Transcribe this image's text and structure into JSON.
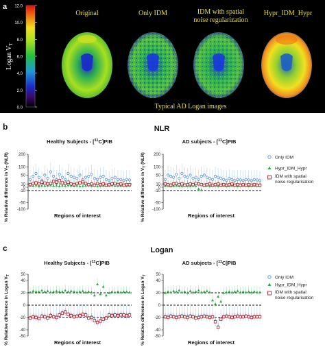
{
  "panel_a": {
    "label": "a",
    "colorbar": {
      "title": "Logan V",
      "title_sub": "T",
      "ticks": [
        "12.0",
        "10.0",
        "8.0",
        "6.0",
        "4.0",
        "2.0",
        "0.0"
      ]
    },
    "image_titles": [
      "Original",
      "Only IDM",
      "IDM with spatial noise regularization",
      "Hypr_IDM_Hypr"
    ],
    "image_title_lines": {
      "c": [
        "Original"
      ],
      "d": [
        "Only IDM"
      ],
      "e": [
        "IDM with spatial",
        "noise regularization"
      ],
      "f": [
        "Hypr_IDM_Hypr"
      ]
    },
    "caption": "Typical AD Logan images"
  },
  "panel_b": {
    "label": "b",
    "title": "NLR",
    "left_title": "Healthy Subjects - [11C]PIB",
    "left_title_parts": [
      "Healthy Subjects - [",
      "11",
      "C]PIB"
    ],
    "right_title": "AD subjects - [11C]PIB",
    "right_title_parts": [
      "AD subjects - [",
      "11",
      "C]PIB"
    ],
    "ylabel": "% Relative difference in VT (NLR)",
    "ylabel_parts": [
      "% Relative difference in V",
      "T",
      " (NLR)"
    ],
    "xlabel": "Regions of interest",
    "yticks": [
      "200",
      "100",
      "50",
      "10",
      "0",
      "-10",
      "-50",
      "-100"
    ]
  },
  "panel_c": {
    "label": "c",
    "title": "Logan",
    "left_title": "Healthy Subjects - [11C]PIB",
    "left_title_parts": [
      "Healthy Subjects - [",
      "11",
      "C]PIB"
    ],
    "right_title": "AD subjects - [11C]PIB",
    "right_title_parts": [
      "AD subjects - [",
      "11",
      "C]PIB"
    ],
    "ylabel": "% Relative difference in Logan VT",
    "ylabel_parts": [
      "% Relative difference in Logan V",
      "T"
    ],
    "xlabel": "Regions of interest",
    "yticks": [
      "50",
      "40",
      "20",
      "0",
      "-20",
      "-40",
      "-50"
    ]
  },
  "legend": {
    "items": [
      "Only IDM",
      "Hypr_IDM_Hypr",
      "IDM with spatial noise regularisation"
    ],
    "item3_lines": [
      "IDM with spatial",
      "noise regularisation"
    ]
  },
  "colors": {
    "only_idm": "#4a90d9",
    "hypr": "#2ea84a",
    "spatial": "#b0202a",
    "panel_a_bg": "#000000",
    "caption": "#e8e010"
  },
  "chart_data": [
    {
      "type": "scatter",
      "title": "Healthy Subjects - [11C]PIB",
      "xlabel": "Regions of interest",
      "ylabel": "% Relative difference in VT (NLR)",
      "ylim": [
        -100,
        200
      ],
      "y_scale": "nonlinear (ticks -100,-50,-10,0,10,50,100,200)",
      "reference_lines": [
        -10,
        10
      ],
      "series": [
        {
          "name": "Only IDM",
          "values": [
            30,
            45,
            60,
            40,
            25,
            50,
            35,
            70,
            45,
            30,
            55,
            40,
            30,
            60,
            45,
            40,
            35,
            50,
            30,
            40,
            45,
            55,
            35,
            30,
            40,
            45,
            30,
            25,
            35,
            40,
            30,
            30,
            25,
            30,
            28
          ]
        },
        {
          "name": "Hypr_IDM_Hypr",
          "values": [
            5,
            4,
            6,
            3,
            5,
            4,
            5,
            6,
            4,
            5,
            3,
            5,
            4,
            6,
            5,
            4,
            5,
            3,
            4,
            5,
            6,
            4,
            5,
            3,
            4,
            5,
            4,
            5,
            6,
            4,
            5,
            4,
            5,
            4,
            5
          ]
        },
        {
          "name": "IDM with spatial noise regularisation",
          "values": [
            8,
            12,
            15,
            10,
            18,
            14,
            10,
            12,
            22,
            18,
            25,
            15,
            12,
            18,
            10,
            8,
            12,
            15,
            20,
            12,
            8,
            10,
            6,
            12,
            8,
            10,
            6,
            8,
            10,
            12,
            8,
            10,
            6,
            8,
            8
          ]
        }
      ]
    },
    {
      "type": "scatter",
      "title": "AD subjects - [11C]PIB",
      "xlabel": "Regions of interest",
      "ylabel": "% Relative difference in VT (NLR)",
      "ylim": [
        -100,
        200
      ],
      "y_scale": "nonlinear (ticks -100,-50,-10,0,10,50,100,200)",
      "reference_lines": [
        -10,
        10
      ],
      "series": [
        {
          "name": "Only IDM",
          "values": [
            30,
            50,
            45,
            40,
            55,
            35,
            60,
            45,
            40,
            50,
            35,
            40,
            30,
            45,
            50,
            40,
            35,
            30,
            45,
            40,
            35,
            30,
            25,
            35,
            30,
            25,
            30,
            28,
            25,
            30,
            28,
            25,
            30,
            28,
            25
          ]
        },
        {
          "name": "Hypr_IDM_Hypr",
          "values": [
            4,
            5,
            3,
            4,
            5,
            4,
            3,
            5,
            4,
            3,
            5,
            4,
            -5,
            -8,
            4,
            5,
            3,
            4,
            5,
            3,
            4,
            5,
            3,
            4,
            5,
            4,
            3,
            4,
            5,
            4,
            3,
            4,
            5,
            4,
            4
          ]
        },
        {
          "name": "IDM with spatial noise regularisation",
          "values": [
            10,
            8,
            6,
            10,
            12,
            8,
            10,
            6,
            8,
            10,
            8,
            12,
            10,
            8,
            6,
            8,
            10,
            6,
            8,
            10,
            6,
            8,
            6,
            8,
            10,
            6,
            8,
            6,
            8,
            6,
            8,
            6,
            8,
            6,
            6
          ]
        }
      ]
    },
    {
      "type": "scatter",
      "title": "Healthy Subjects - [11C]PIB",
      "xlabel": "Regions of interest",
      "ylabel": "% Relative difference in Logan VT",
      "ylim": [
        -50,
        50
      ],
      "y_scale": "linear",
      "reference_lines": [
        -20,
        0,
        20
      ],
      "series": [
        {
          "name": "Only IDM",
          "values": [
            -20,
            -18,
            -19,
            -21,
            -17,
            -18,
            -20,
            -16,
            -18,
            -19,
            -15,
            -12,
            -10,
            -14,
            -16,
            -18,
            -17,
            -16,
            -14,
            -15,
            -20,
            -19,
            -24,
            -27,
            -25,
            -22,
            -20,
            -15,
            -16,
            -15,
            -16,
            -15,
            -15,
            -16,
            -15
          ]
        },
        {
          "name": "Hypr_IDM_Hypr",
          "values": [
            21,
            23,
            22,
            22,
            24,
            22,
            23,
            21,
            22,
            23,
            22,
            22,
            24,
            22,
            23,
            22,
            21,
            22,
            23,
            21,
            22,
            21,
            16,
            34,
            18,
            30,
            16,
            20,
            22,
            21,
            22,
            21,
            22,
            22,
            21
          ]
        },
        {
          "name": "IDM with spatial noise regularisation",
          "values": [
            -21,
            -19,
            -20,
            -22,
            -18,
            -19,
            -21,
            -17,
            -19,
            -20,
            -16,
            -13,
            -11,
            -15,
            -17,
            -19,
            -18,
            -17,
            -15,
            -16,
            -21,
            -20,
            -25,
            -28,
            -26,
            -23,
            -21,
            -16,
            -17,
            -16,
            -17,
            -16,
            -16,
            -17,
            -16
          ]
        }
      ]
    },
    {
      "type": "scatter",
      "title": "AD subjects - [11C]PIB",
      "xlabel": "Regions of interest",
      "ylabel": "% Relative difference in Logan VT",
      "ylim": [
        -50,
        50
      ],
      "y_scale": "linear",
      "reference_lines": [
        -20,
        0,
        20
      ],
      "series": [
        {
          "name": "Only IDM",
          "values": [
            -18,
            -19,
            -17,
            -18,
            -19,
            -18,
            -17,
            -18,
            -19,
            -17,
            -18,
            -20,
            -19,
            -18,
            -17,
            -18,
            -19,
            -18,
            -26,
            -35,
            -22,
            -18,
            -17,
            -18,
            -19,
            -18,
            -17,
            -18,
            -18,
            -17,
            -18,
            -19,
            -18,
            -18,
            -18
          ]
        },
        {
          "name": "Hypr_IDM_Hypr",
          "values": [
            20,
            22,
            21,
            23,
            22,
            24,
            21,
            22,
            20,
            23,
            21,
            22,
            24,
            21,
            22,
            23,
            21,
            8,
            2,
            14,
            6,
            20,
            21,
            22,
            21,
            22,
            23,
            21,
            22,
            21,
            22,
            21,
            22,
            21,
            21
          ]
        },
        {
          "name": "IDM with spatial noise regularisation",
          "values": [
            -19,
            -20,
            -18,
            -19,
            -20,
            -19,
            -18,
            -19,
            -20,
            -18,
            -19,
            -21,
            -20,
            -19,
            -18,
            -19,
            -20,
            -19,
            -27,
            -36,
            -23,
            -19,
            -18,
            -19,
            -20,
            -19,
            -18,
            -19,
            -19,
            -18,
            -19,
            -20,
            -19,
            -19,
            -19
          ]
        }
      ]
    }
  ]
}
